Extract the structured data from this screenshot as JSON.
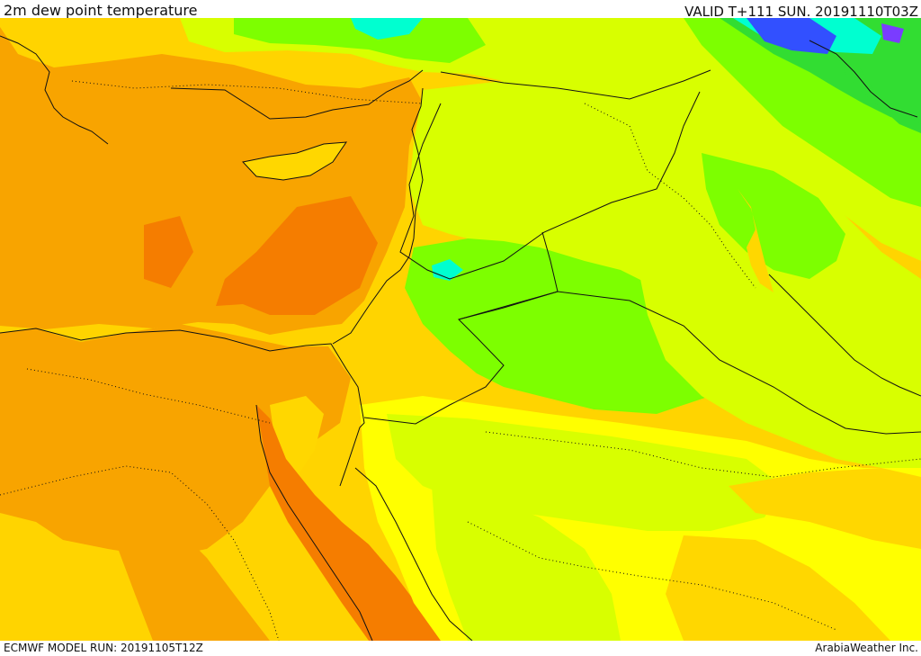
{
  "header": {
    "title": "2m dew point temperature",
    "valid_time": "VALID T+111 SUN. 20191110T03Z"
  },
  "footer": {
    "model_run": "ECMWF MODEL RUN: 20191105T12Z",
    "credit": "ArabiaWeather Inc."
  },
  "map": {
    "field": "2m dew point temperature",
    "palette": {
      "dark_orange": "#f57d00",
      "orange": "#f8a400",
      "light_orange": "#ffd700",
      "yellow": "#ffff00",
      "yellow_green": "#d8ff00",
      "lime": "#7dff00",
      "green": "#32dd32",
      "cyan": "#00ffd0",
      "blue": "#3250ff",
      "violet": "#7a3cff",
      "coastline": "#111111",
      "border": "#111111"
    }
  }
}
